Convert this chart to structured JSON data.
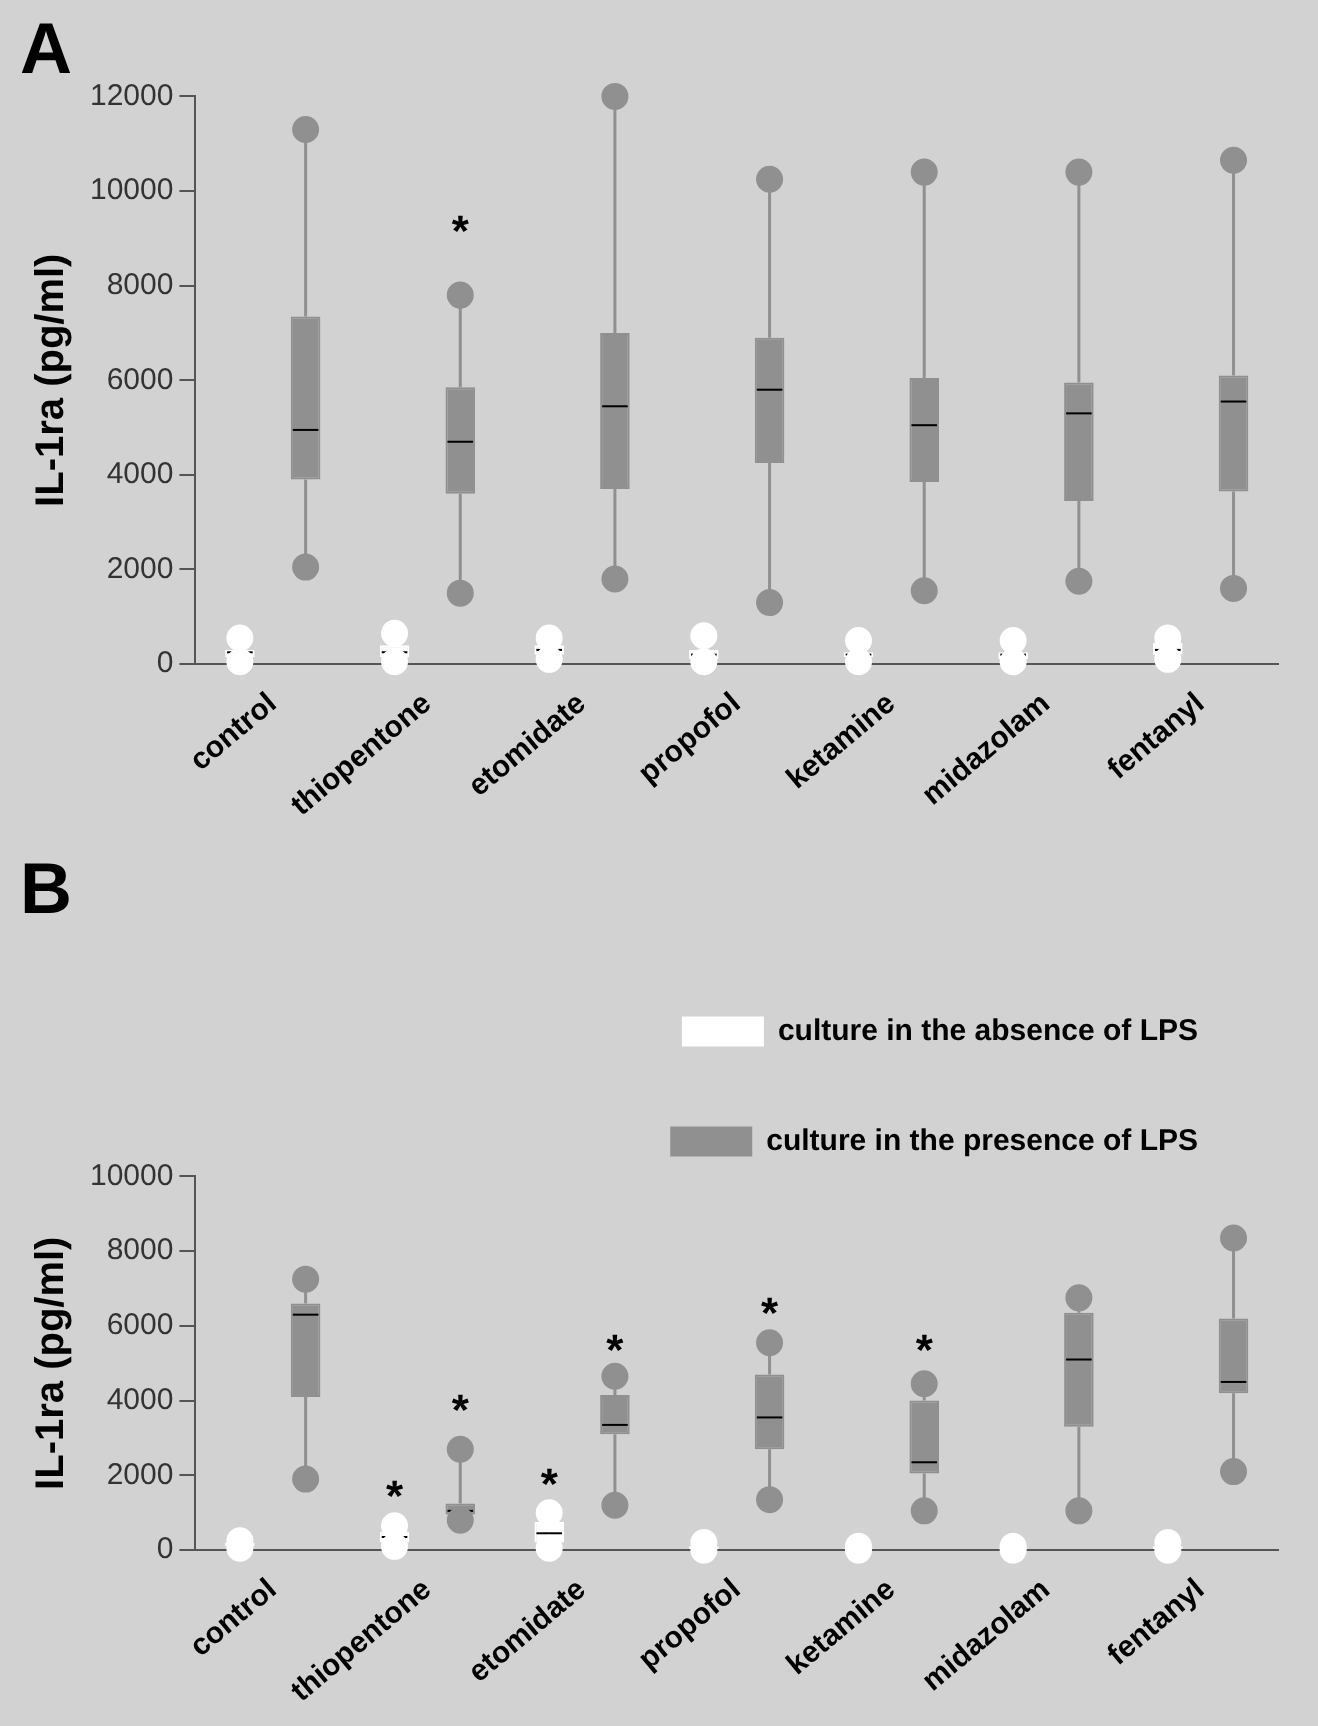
{
  "chart_data": [
    {
      "type": "box",
      "title": "A",
      "ylabel": "IL-1ra (pg/ml)",
      "categories": [
        "control",
        "thiopentone",
        "etomidate",
        "propofol",
        "ketamine",
        "midazolam",
        "fentanyl"
      ],
      "series": [
        {
          "color": "#ffffff",
          "boxes": [
            {
              "low": 50,
              "q1": 150,
              "median": 250,
              "q3": 300,
              "high": 550,
              "outliers": [
                50,
                550
              ]
            },
            {
              "low": 50,
              "q1": 150,
              "median": 250,
              "q3": 400,
              "high": 650,
              "outliers": [
                50,
                650
              ]
            },
            {
              "low": 100,
              "q1": 200,
              "median": 300,
              "q3": 400,
              "high": 550,
              "outliers": [
                100,
                550
              ]
            },
            {
              "low": 50,
              "q1": 100,
              "median": 200,
              "q3": 300,
              "high": 600,
              "outliers": [
                50,
                600
              ]
            },
            {
              "low": 50,
              "q1": 150,
              "median": 200,
              "q3": 250,
              "high": 500,
              "outliers": [
                50,
                500
              ]
            },
            {
              "low": 50,
              "q1": 100,
              "median": 200,
              "q3": 250,
              "high": 500,
              "outliers": [
                50,
                500
              ]
            },
            {
              "low": 100,
              "q1": 200,
              "median": 300,
              "q3": 450,
              "high": 550,
              "outliers": [
                100,
                550
              ]
            }
          ]
        },
        {
          "color": "#909090",
          "boxes": [
            {
              "low": 2050,
              "q1": 3900,
              "median": 4950,
              "q3": 7350,
              "high": 11300,
              "outliers": [
                2050,
                11300
              ]
            },
            {
              "low": 1500,
              "q1": 3600,
              "median": 4700,
              "q3": 5850,
              "high": 7800,
              "outliers": [
                1500,
                7800
              ]
            },
            {
              "low": 1800,
              "q1": 3700,
              "median": 5450,
              "q3": 7000,
              "high": 12000,
              "outliers": [
                1800,
                12000
              ]
            },
            {
              "low": 1300,
              "q1": 4250,
              "median": 5800,
              "q3": 6900,
              "high": 10250,
              "outliers": [
                1300,
                10250
              ]
            },
            {
              "low": 1550,
              "q1": 3850,
              "median": 5050,
              "q3": 6050,
              "high": 10400,
              "outliers": [
                1550,
                10400
              ]
            },
            {
              "low": 1750,
              "q1": 3450,
              "median": 5300,
              "q3": 5950,
              "high": 10400,
              "outliers": [
                1750,
                10400
              ]
            },
            {
              "low": 1600,
              "q1": 3650,
              "median": 5550,
              "q3": 6100,
              "high": 10650,
              "outliers": [
                1600,
                10650
              ]
            }
          ]
        }
      ],
      "ylim": [
        0,
        12000
      ],
      "yticks": [
        0,
        2000,
        4000,
        6000,
        8000,
        10000,
        12000
      ],
      "annotations": [
        "*"
      ],
      "marker": "circle",
      "grid": false,
      "legend": false
    },
    {
      "type": "box",
      "title": "B",
      "ylabel": "IL-1ra (pg/ml)",
      "categories": [
        "control",
        "thiopentone",
        "etomidate",
        "propofol",
        "ketamine",
        "midazolam",
        "fentanyl"
      ],
      "series": [
        {
          "name": "culture in the absence of LPS",
          "color": "#ffffff",
          "boxes": [
            {
              "low": 50,
              "q1": 100,
              "median": 150,
              "q3": 200,
              "high": 250,
              "outliers": [
                50,
                250
              ]
            },
            {
              "low": 100,
              "q1": 200,
              "median": 350,
              "q3": 500,
              "high": 650,
              "outliers": [
                100,
                650
              ]
            },
            {
              "low": 50,
              "q1": 200,
              "median": 450,
              "q3": 750,
              "high": 1000,
              "outliers": [
                50,
                1000
              ]
            },
            {
              "low": 0,
              "q1": 0,
              "median": 50,
              "q3": 100,
              "high": 200,
              "outliers": [
                0,
                200
              ]
            },
            {
              "low": 0,
              "q1": 0,
              "median": 50,
              "q3": 50,
              "high": 100,
              "outliers": [
                0,
                100
              ]
            },
            {
              "low": 0,
              "q1": 0,
              "median": 50,
              "q3": 50,
              "high": 100,
              "outliers": [
                0,
                100
              ]
            },
            {
              "low": 0,
              "q1": 0,
              "median": 50,
              "q3": 100,
              "high": 200,
              "outliers": [
                0,
                200
              ]
            }
          ]
        },
        {
          "name": "culture in the presence of LPS",
          "color": "#909090",
          "boxes": [
            {
              "low": 1900,
              "q1": 4100,
              "median": 6300,
              "q3": 6600,
              "high": 7250,
              "outliers": [
                1900,
                7250
              ]
            },
            {
              "low": 800,
              "q1": 950,
              "median": 1050,
              "q3": 1250,
              "high": 2700,
              "outliers": [
                800,
                2700
              ]
            },
            {
              "low": 1200,
              "q1": 3100,
              "median": 3350,
              "q3": 4150,
              "high": 4650,
              "outliers": [
                1200,
                4650
              ]
            },
            {
              "low": 1350,
              "q1": 2700,
              "median": 3550,
              "q3": 4700,
              "high": 5550,
              "outliers": [
                1350,
                5550
              ]
            },
            {
              "low": 1050,
              "q1": 2050,
              "median": 2350,
              "q3": 4000,
              "high": 4450,
              "outliers": [
                1050,
                4450
              ]
            },
            {
              "low": 1050,
              "q1": 3300,
              "median": 5100,
              "q3": 6350,
              "high": 6750,
              "outliers": [
                1050,
                6750
              ]
            },
            {
              "low": 2100,
              "q1": 4200,
              "median": 4500,
              "q3": 6200,
              "high": 8350,
              "outliers": [
                2100,
                8350
              ]
            }
          ]
        }
      ],
      "ylim": [
        0,
        10000
      ],
      "yticks": [
        0,
        2000,
        4000,
        6000,
        8000,
        10000
      ],
      "annotations": [
        "*",
        "*",
        "*",
        "*",
        "*",
        "*"
      ],
      "marker": "circle",
      "grid": false,
      "legend": "top right"
    }
  ]
}
